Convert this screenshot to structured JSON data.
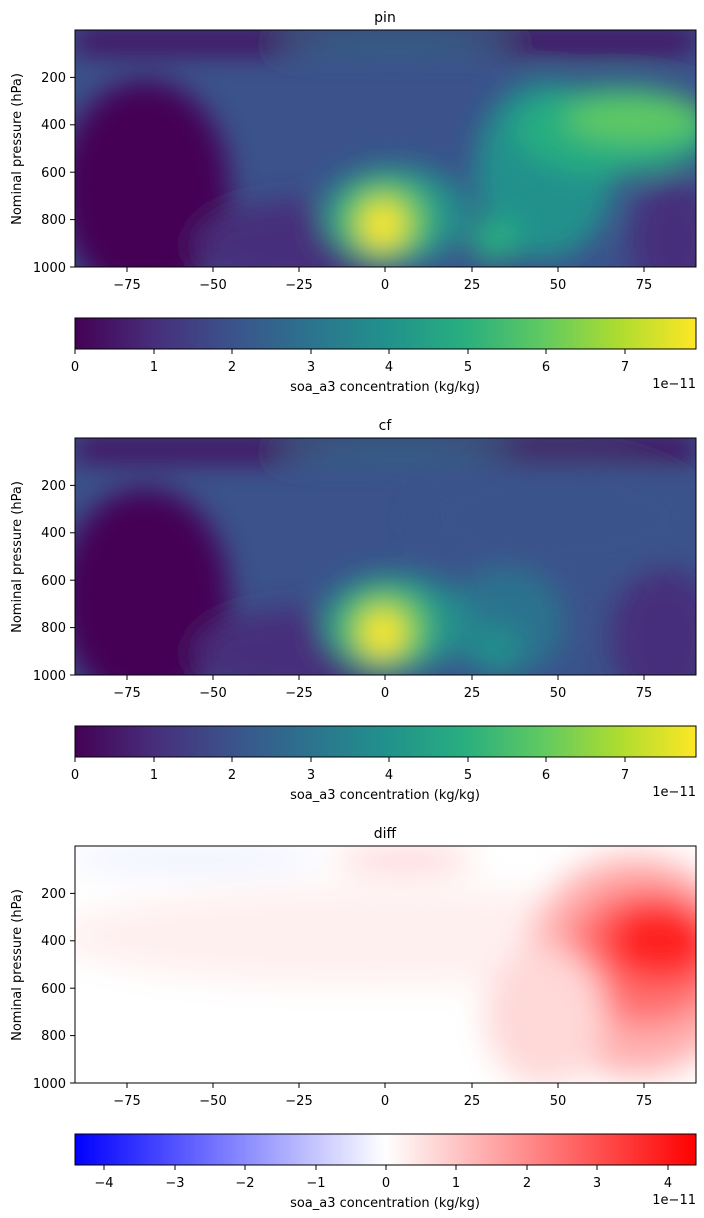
{
  "chart_data": [
    {
      "type": "heatmap",
      "title": "pin",
      "ylabel": "Nominal pressure (hPa)",
      "xlabel": "",
      "xlim": [
        -90,
        90
      ],
      "ylim": [
        1000,
        0
      ],
      "xticks": [
        "−75",
        "−50",
        "−25",
        "0",
        "25",
        "50",
        "75"
      ],
      "yticks": [
        "200",
        "400",
        "600",
        "800",
        "1000"
      ],
      "colormap": "viridis",
      "colorbar": {
        "label": "soa_a3 concentration (kg/kg)",
        "ticks": [
          "0",
          "1",
          "2",
          "3",
          "4",
          "5",
          "6",
          "7"
        ],
        "range": [
          0,
          7.9
        ],
        "scale_label": "1e−11"
      },
      "features": [
        {
          "lat": 0,
          "pressure": 850,
          "value": 7.9
        },
        {
          "lat": 80,
          "pressure": 360,
          "value": 5.8
        },
        {
          "lat": 30,
          "pressure": 880,
          "value": 4.2
        },
        {
          "lat": -70,
          "pressure": 800,
          "value": 0.2
        }
      ]
    },
    {
      "type": "heatmap",
      "title": "cf",
      "ylabel": "Nominal pressure (hPa)",
      "xlabel": "",
      "xlim": [
        -90,
        90
      ],
      "ylim": [
        1000,
        0
      ],
      "xticks": [
        "−75",
        "−50",
        "−25",
        "0",
        "25",
        "50",
        "75"
      ],
      "yticks": [
        "200",
        "400",
        "600",
        "800",
        "1000"
      ],
      "colormap": "viridis",
      "colorbar": {
        "label": "soa_a3 concentration (kg/kg)",
        "ticks": [
          "0",
          "1",
          "2",
          "3",
          "4",
          "5",
          "6",
          "7"
        ],
        "range": [
          0,
          7.9
        ],
        "scale_label": "1e−11"
      },
      "features": [
        {
          "lat": 0,
          "pressure": 850,
          "value": 7.9
        },
        {
          "lat": 30,
          "pressure": 880,
          "value": 3.8
        },
        {
          "lat": -70,
          "pressure": 800,
          "value": 0.2
        }
      ]
    },
    {
      "type": "heatmap",
      "title": "diff",
      "ylabel": "Nominal pressure (hPa)",
      "xlabel": "",
      "xlim": [
        -90,
        90
      ],
      "ylim": [
        1000,
        0
      ],
      "xticks": [
        "−75",
        "−50",
        "−25",
        "0",
        "25",
        "50",
        "75"
      ],
      "yticks": [
        "200",
        "400",
        "600",
        "800",
        "1000"
      ],
      "colormap": "bwr",
      "colorbar": {
        "label": "soa_a3 concentration (kg/kg)",
        "ticks": [
          "−4",
          "−3",
          "−2",
          "−1",
          "0",
          "1",
          "2",
          "3",
          "4"
        ],
        "range": [
          -4.4,
          4.4
        ],
        "scale_label": "1e−11"
      },
      "features": [
        {
          "lat": 80,
          "pressure": 360,
          "value": 4.4
        },
        {
          "lat": 10,
          "pressure": 60,
          "value": 0.8
        },
        {
          "lat": -50,
          "pressure": 60,
          "value": -0.3
        }
      ]
    }
  ]
}
